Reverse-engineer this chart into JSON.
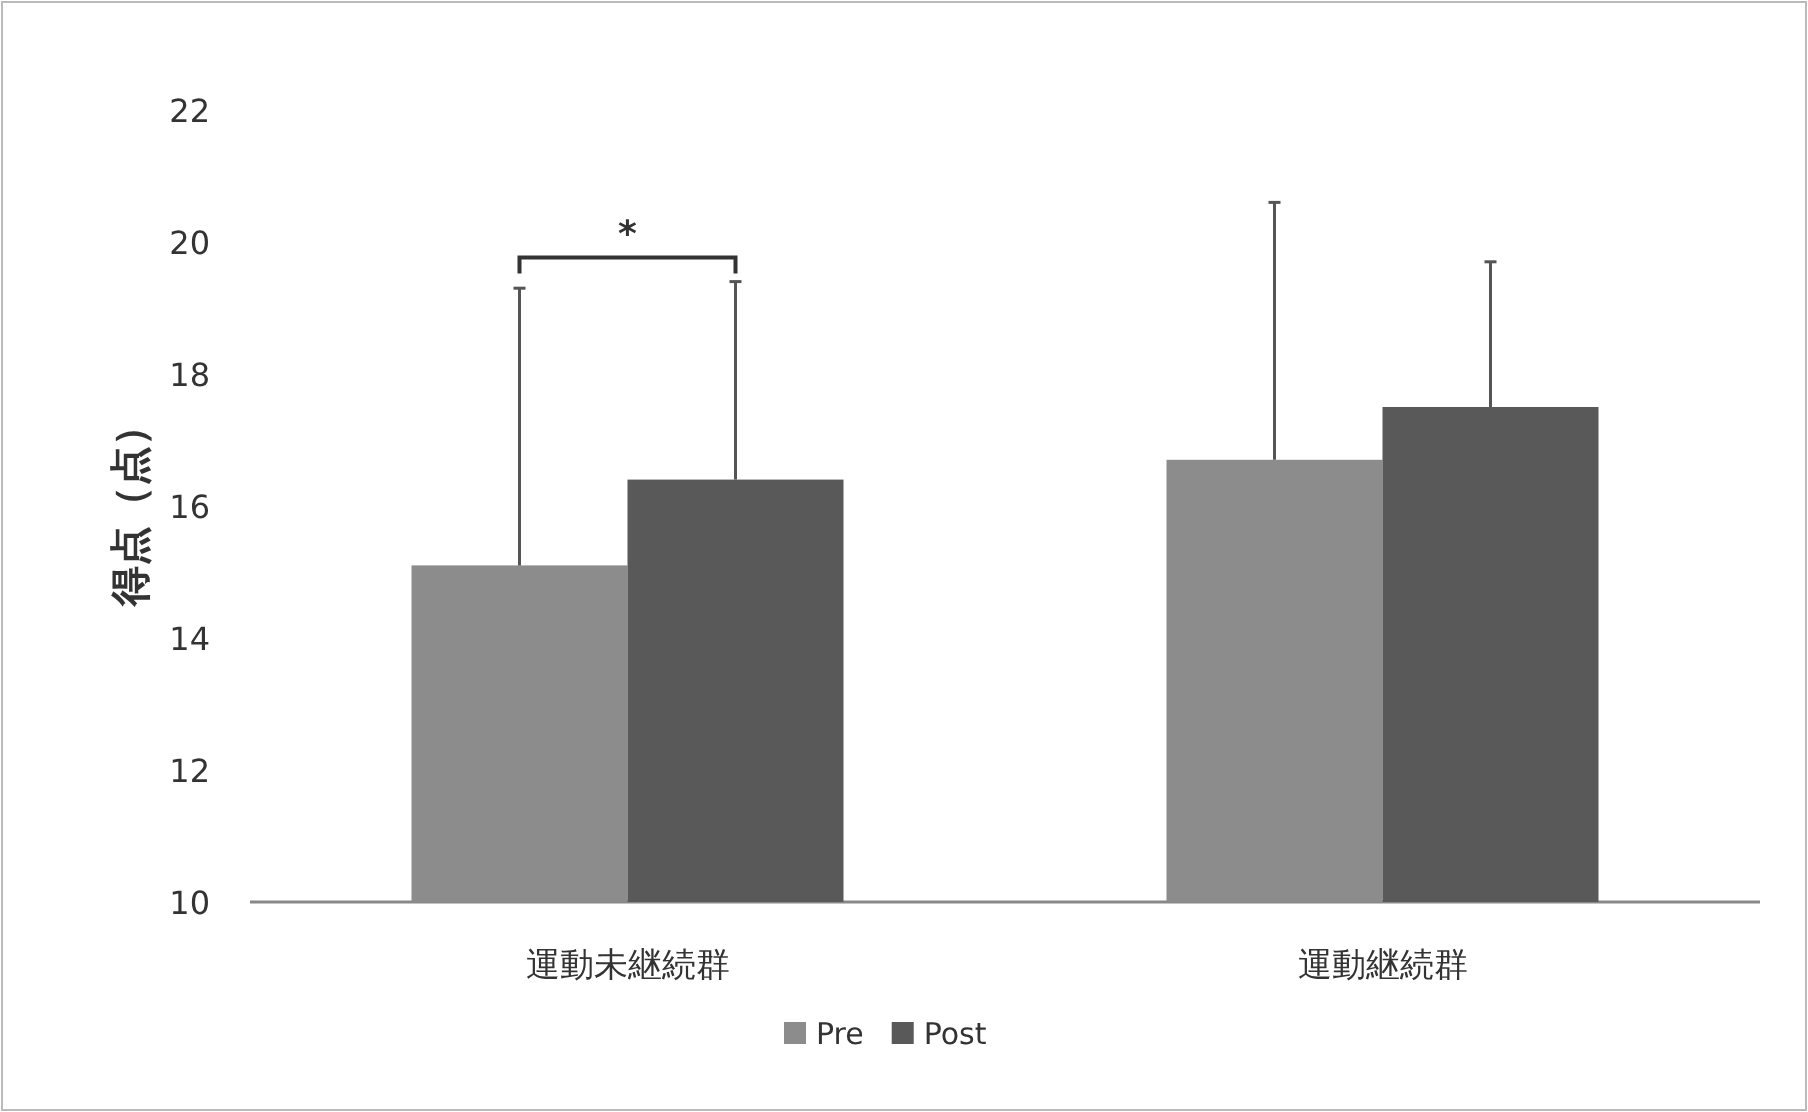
{
  "chart_data": {
    "type": "bar",
    "ylabel": "得点（点）",
    "categories": [
      "運動未継続群",
      "運動継続群"
    ],
    "series": [
      {
        "name": "Pre",
        "color": "#8c8c8c",
        "values": [
          15.1,
          16.7
        ],
        "errors": [
          [
            15.1,
            19.3
          ],
          [
            16.7,
            20.6
          ]
        ]
      },
      {
        "name": "Post",
        "color": "#595959",
        "values": [
          16.4,
          17.5
        ],
        "errors": [
          [
            16.4,
            19.4
          ],
          [
            17.5,
            19.7
          ]
        ]
      }
    ],
    "ylim": [
      10,
      22
    ],
    "yticks": [
      10,
      12,
      14,
      16,
      18,
      20,
      22
    ],
    "grid": false,
    "legend": "bottom",
    "annotations": [
      "*"
    ]
  }
}
